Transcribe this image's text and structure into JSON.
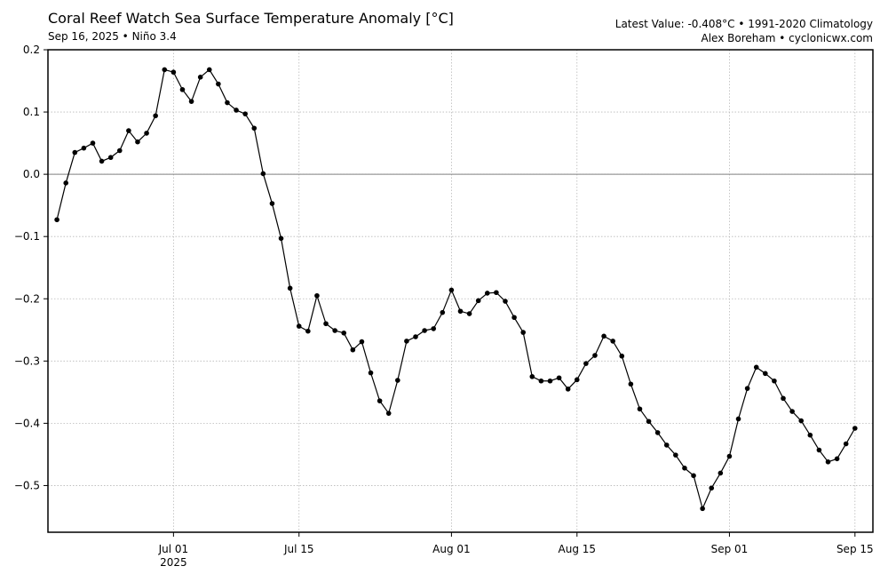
{
  "header": {
    "title": "Coral Reef Watch Sea Surface Temperature Anomaly [°C]",
    "subtitle": "Sep 16, 2025 • Niño 3.4",
    "info_line1": "Latest Value: -0.408°C • 1991-2020 Climatology",
    "info_line2": "Alex Boreham • cyclonicwx.com"
  },
  "chart_data": {
    "type": "line",
    "title": "Coral Reef Watch Sea Surface Temperature Anomaly [°C]",
    "subtitle": "Sep 16, 2025 • Niño 3.4",
    "xlabel": "",
    "ylabel": "",
    "x_start": "2025-06-18",
    "x_end": "2025-09-16",
    "xlim": [
      "2025-06-17",
      "2025-09-17"
    ],
    "ylim": [
      -0.575,
      0.2
    ],
    "grid": true,
    "zero_line": true,
    "line_color": "#000000",
    "marker": "circle",
    "x_ticks": [
      {
        "date": "2025-07-01",
        "label": "Jul 01",
        "sublabel": "2025"
      },
      {
        "date": "2025-07-15",
        "label": "Jul 15",
        "sublabel": ""
      },
      {
        "date": "2025-08-01",
        "label": "Aug 01",
        "sublabel": ""
      },
      {
        "date": "2025-08-15",
        "label": "Aug 15",
        "sublabel": ""
      },
      {
        "date": "2025-09-01",
        "label": "Sep 01",
        "sublabel": ""
      },
      {
        "date": "2025-09-15",
        "label": "Sep 15",
        "sublabel": ""
      }
    ],
    "y_ticks": [
      {
        "value": 0.2,
        "label": "0.2"
      },
      {
        "value": 0.1,
        "label": "0.1"
      },
      {
        "value": 0.0,
        "label": "0.0"
      },
      {
        "value": -0.1,
        "label": "−0.1"
      },
      {
        "value": -0.2,
        "label": "−0.2"
      },
      {
        "value": -0.3,
        "label": "−0.3"
      },
      {
        "value": -0.4,
        "label": "−0.4"
      },
      {
        "value": -0.5,
        "label": "−0.5"
      }
    ],
    "values": [
      -0.073,
      -0.014,
      0.035,
      0.042,
      0.05,
      0.021,
      0.027,
      0.038,
      0.07,
      0.052,
      0.066,
      0.094,
      0.168,
      0.164,
      0.136,
      0.117,
      0.156,
      0.168,
      0.145,
      0.115,
      0.103,
      0.097,
      0.074,
      0.001,
      -0.047,
      -0.103,
      -0.183,
      -0.244,
      -0.252,
      -0.195,
      -0.24,
      -0.251,
      -0.255,
      -0.282,
      -0.269,
      -0.319,
      -0.364,
      -0.384,
      -0.331,
      -0.268,
      -0.261,
      -0.251,
      -0.248,
      -0.222,
      -0.186,
      -0.22,
      -0.224,
      -0.203,
      -0.191,
      -0.19,
      -0.204,
      -0.23,
      -0.254,
      -0.325,
      -0.332,
      -0.332,
      -0.327,
      -0.345,
      -0.33,
      -0.304,
      -0.291,
      -0.26,
      -0.268,
      -0.292,
      -0.337,
      -0.377,
      -0.397,
      -0.415,
      -0.435,
      -0.451,
      -0.472,
      -0.484,
      -0.537,
      -0.504,
      -0.48,
      -0.453,
      -0.393,
      -0.344,
      -0.31,
      -0.32,
      -0.332,
      -0.36,
      -0.381,
      -0.396,
      -0.419,
      -0.443,
      -0.462,
      -0.457,
      -0.433,
      -0.408
    ]
  }
}
